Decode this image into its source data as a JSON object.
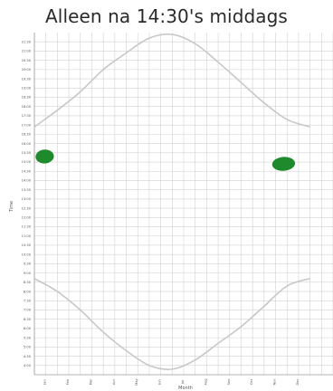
{
  "chart_data": {
    "type": "line",
    "title": "Alleen na 14:30's middags",
    "xlabel": "Month",
    "ylabel": "Time",
    "x_categories": [
      "Jan",
      "Feb",
      "Mar",
      "Apr",
      "May",
      "Jun",
      "Jul",
      "Aug",
      "Sep",
      "Oct",
      "Nov",
      "Dec"
    ],
    "y_tick_labels": [
      "4:00",
      "4:30",
      "5:00",
      "5:30",
      "6:00",
      "6:30",
      "7:00",
      "7:30",
      "8:00",
      "8:30",
      "9:00",
      "9:30",
      "10:00",
      "10:30",
      "11:00",
      "11:30",
      "12:00",
      "12:30",
      "13:00",
      "13:30",
      "14:00",
      "14:30",
      "15:00",
      "15:30",
      "16:00",
      "16:30",
      "17:00",
      "17:30",
      "18:00",
      "18:30",
      "19:00",
      "19:30",
      "20:00",
      "20:30",
      "21:00",
      "21:30"
    ],
    "ylim": [
      3.5,
      22
    ],
    "grid": true,
    "series": [
      {
        "kind": "sunset-curve",
        "x": [
          1,
          2,
          3,
          4,
          5,
          6,
          7,
          8,
          9,
          10,
          11,
          12,
          13
        ],
        "y": [
          16.9,
          17.8,
          18.8,
          20.0,
          20.9,
          21.7,
          21.9,
          21.4,
          20.4,
          19.3,
          18.2,
          17.3,
          16.9
        ],
        "color": "#c8c8c8"
      },
      {
        "kind": "sunrise-curve",
        "x": [
          1,
          2,
          3,
          4,
          5,
          6,
          7,
          8,
          9,
          10,
          11,
          12,
          13
        ],
        "y": [
          8.7,
          8.0,
          7.0,
          5.8,
          4.8,
          4.0,
          3.8,
          4.3,
          5.2,
          6.1,
          7.2,
          8.3,
          8.7
        ],
        "color": "#c8c8c8"
      }
    ],
    "highlights": [
      {
        "kind": "blob",
        "x_center": 1.45,
        "y_center": 15.3,
        "x_width": 0.8,
        "y_height": 0.75,
        "color": "#1f8a2c"
      },
      {
        "kind": "blob",
        "x_center": 11.85,
        "y_center": 14.9,
        "x_width": 1.0,
        "y_height": 0.75,
        "color": "#1f8a2c"
      }
    ]
  }
}
